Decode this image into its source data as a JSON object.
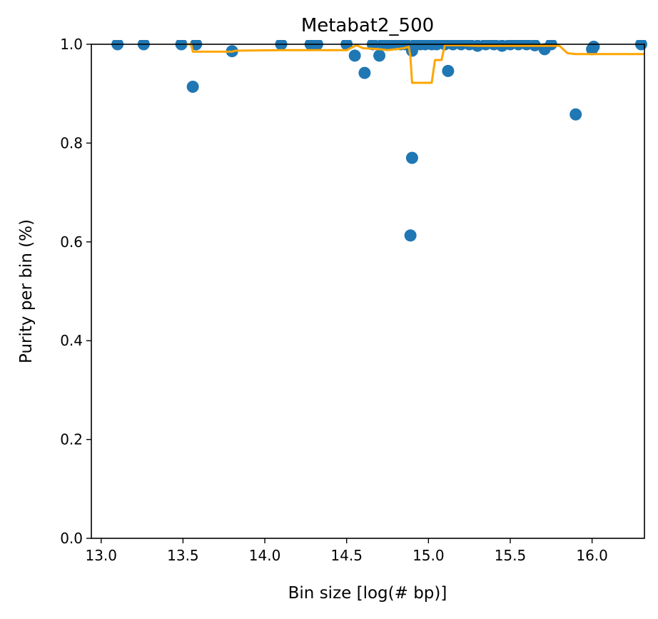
{
  "chart_data": {
    "type": "scatter",
    "title": "Metabat2_500",
    "xlabel": "Bin size [log(# bp)]",
    "ylabel": "Purity per bin (%)",
    "xlim": [
      12.94,
      16.32
    ],
    "ylim": [
      0.0,
      1.0
    ],
    "xticks": [
      13.0,
      13.5,
      14.0,
      14.5,
      15.0,
      15.5,
      16.0
    ],
    "xtick_labels": [
      "13.0",
      "13.5",
      "14.0",
      "14.5",
      "15.0",
      "15.5",
      "16.0"
    ],
    "yticks": [
      0.0,
      0.2,
      0.4,
      0.6,
      0.8,
      1.0
    ],
    "ytick_labels": [
      "0.0",
      "0.2",
      "0.4",
      "0.6",
      "0.8",
      "1.0"
    ],
    "grid": false,
    "series": [
      {
        "kind": "scatter",
        "color": "#1f77b4",
        "points": [
          [
            13.1,
            1.0
          ],
          [
            13.26,
            1.0
          ],
          [
            13.49,
            1.0
          ],
          [
            13.56,
            0.914
          ],
          [
            13.58,
            1.0
          ],
          [
            13.8,
            0.986
          ],
          [
            14.1,
            1.0
          ],
          [
            14.28,
            1.0
          ],
          [
            14.32,
            1.0
          ],
          [
            14.5,
            1.0
          ],
          [
            14.55,
            0.977
          ],
          [
            14.61,
            0.942
          ],
          [
            14.66,
            1.0
          ],
          [
            14.7,
            0.977
          ],
          [
            14.72,
            1.0
          ],
          [
            14.75,
            1.0
          ],
          [
            14.78,
            1.0
          ],
          [
            14.8,
            1.0
          ],
          [
            14.83,
            1.0
          ],
          [
            14.86,
            1.0
          ],
          [
            14.89,
            0.613
          ],
          [
            14.9,
            0.77
          ],
          [
            14.9,
            0.987
          ],
          [
            14.92,
            1.0
          ],
          [
            14.95,
            1.0
          ],
          [
            14.98,
            1.0
          ],
          [
            15.02,
            1.0
          ],
          [
            15.05,
            1.0
          ],
          [
            15.1,
            1.0
          ],
          [
            15.12,
            0.946
          ],
          [
            15.15,
            1.0
          ],
          [
            15.2,
            1.0
          ],
          [
            15.25,
            1.0
          ],
          [
            15.3,
            0.997
          ],
          [
            15.35,
            1.0
          ],
          [
            15.4,
            1.0
          ],
          [
            15.45,
            0.997
          ],
          [
            15.5,
            1.0
          ],
          [
            15.55,
            1.0
          ],
          [
            15.6,
            1.0
          ],
          [
            15.65,
            0.998
          ],
          [
            15.71,
            0.99
          ],
          [
            15.75,
            1.0
          ],
          [
            15.9,
            0.858
          ],
          [
            16.0,
            0.99
          ],
          [
            16.01,
            0.995
          ],
          [
            16.3,
            1.0
          ]
        ]
      },
      {
        "kind": "line",
        "color": "#ffa500",
        "points": [
          [
            13.52,
            1.0
          ],
          [
            13.55,
            1.0
          ],
          [
            13.56,
            0.985
          ],
          [
            13.8,
            0.985
          ],
          [
            13.82,
            0.987
          ],
          [
            14.1,
            0.988
          ],
          [
            14.5,
            0.988
          ],
          [
            14.56,
            0.998
          ],
          [
            14.6,
            0.992
          ],
          [
            14.7,
            0.99
          ],
          [
            14.75,
            0.988
          ],
          [
            14.85,
            0.992
          ],
          [
            14.88,
            0.995
          ],
          [
            14.89,
            0.975
          ],
          [
            14.9,
            0.922
          ],
          [
            15.02,
            0.922
          ],
          [
            15.04,
            0.968
          ],
          [
            15.08,
            0.968
          ],
          [
            15.1,
            0.998
          ],
          [
            15.2,
            0.998
          ],
          [
            15.3,
            0.997
          ],
          [
            15.8,
            0.997
          ],
          [
            15.85,
            0.982
          ],
          [
            15.9,
            0.98
          ],
          [
            16.32,
            0.98
          ]
        ]
      }
    ]
  }
}
